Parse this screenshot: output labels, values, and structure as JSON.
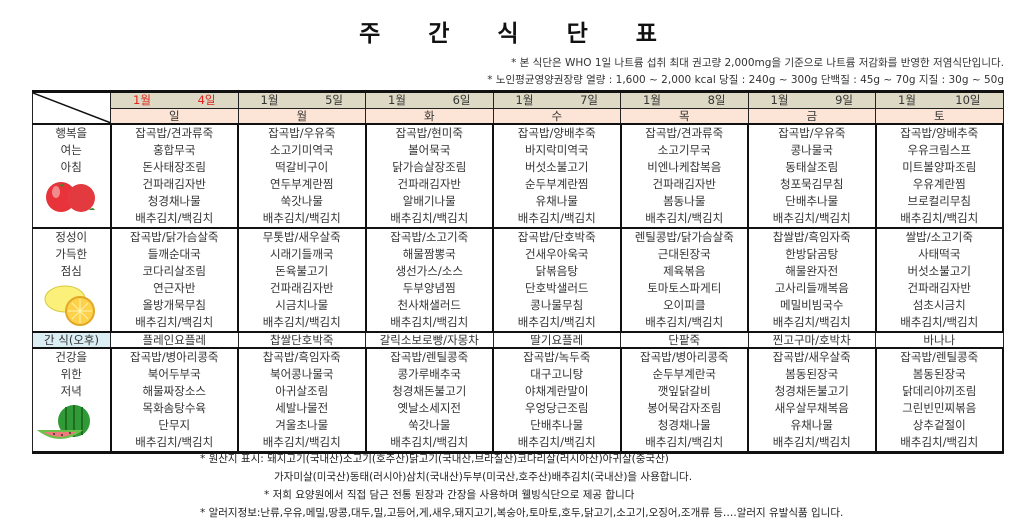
{
  "title": "주 간 식 단 표",
  "notes": [
    "* 본 식단은 WHO 1일 나트륨 섭취 최대 권고량 2,000mg을 기준으로 나트륨 저감화를 반영한 저염식단입니다.",
    "* 노인평균영양권장량  열량 : 1,600 ~ 2,000 kcal  당질 : 240g ~ 300g  단백질 : 45g ~ 70g  지질 : 30g ~ 50g"
  ],
  "colors": {
    "date_bg": "#ddd9c4",
    "day_bg": "#fce4d6",
    "snack_label_bg": "#daeef3",
    "sunday": "#e0241b"
  },
  "days": [
    {
      "month": "1월",
      "date": "4일",
      "weekday": "일",
      "holiday": true
    },
    {
      "month": "1월",
      "date": "5일",
      "weekday": "월"
    },
    {
      "month": "1월",
      "date": "6일",
      "weekday": "화"
    },
    {
      "month": "1월",
      "date": "7일",
      "weekday": "수"
    },
    {
      "month": "1월",
      "date": "8일",
      "weekday": "목"
    },
    {
      "month": "1월",
      "date": "9일",
      "weekday": "금"
    },
    {
      "month": "1월",
      "date": "10일",
      "weekday": "토"
    }
  ],
  "meals": [
    {
      "label": [
        "행복을",
        "여는",
        "아침"
      ],
      "icon": "tomato-icon",
      "menu": [
        [
          "잡곡밥/견과류죽",
          "홍합무국",
          "돈사태장조림",
          "건파래김자반",
          "청경채나물",
          "배추김치/백김치"
        ],
        [
          "잡곡밥/우유죽",
          "소고기미역국",
          "떡갈비구이",
          "연두부계란찜",
          "쑥갓나물",
          "배추김치/백김치"
        ],
        [
          "잡곡밥/현미죽",
          "볼어묵국",
          "닭가슴살장조림",
          "건파래김자반",
          "알배기나물",
          "배추김치/백김치"
        ],
        [
          "잡곡밥/양배추죽",
          "바지락미역국",
          "버섯소불고기",
          "순두부계란찜",
          "유채나물",
          "배추김치/백김치"
        ],
        [
          "잡곡밥/견과류죽",
          "소고기무국",
          "비엔나케찹복음",
          "건파래김자반",
          "봄동나물",
          "배추김치/백김치"
        ],
        [
          "잡곡밥/우유죽",
          "콩나물국",
          "동태살조림",
          "청포묵김무침",
          "단배추나물",
          "배추김치/백김치"
        ],
        [
          "잡곡밥/양배추죽",
          "우유크림스프",
          "미트볼양파조림",
          "우유계란찜",
          "브로컬리무침",
          "배추김치/백김치"
        ]
      ]
    },
    {
      "label": [
        "정성이",
        "가득한",
        "점심"
      ],
      "icon": "lemon-icon",
      "menu": [
        [
          "잡곡밥/닭가슴살죽",
          "들깨순대국",
          "코다리살조림",
          "연근자반",
          "올방개묵무침",
          "배추김치/백김치"
        ],
        [
          "무톳밥/새우살죽",
          "시래기들깨국",
          "돈육불고기",
          "건파래김자반",
          "시금치나물",
          "배추김치/백김치"
        ],
        [
          "잡곡밥/소고기죽",
          "해물짬뽕국",
          "생선가스/소스",
          "두부양념찜",
          "천사채샐러드",
          "배추김치/백김치"
        ],
        [
          "잡곡밥/단호박죽",
          "건새우아욱국",
          "닭볶음탕",
          "단호박샐러드",
          "콩나물무침",
          "배추김치/백김치"
        ],
        [
          "렌틸콩밥/닭가슴살죽",
          "근대된장국",
          "제육볶음",
          "토마토스파게티",
          "오이피클",
          "배추김치/백김치"
        ],
        [
          "찹쌀밥/흑임자죽",
          "한방닭곰탕",
          "해물완자전",
          "고사리들깨복음",
          "메밀비빔국수",
          "배추김치/백김치"
        ],
        [
          "쌀밥/소고기죽",
          "사태떡국",
          "버섯소불고기",
          "건파래김자반",
          "섬초시금치",
          "배추김치/백김치"
        ]
      ]
    }
  ],
  "snack": {
    "label": "간 식(오후)",
    "items": [
      "플레인요플레",
      "찹쌀단호박죽",
      "갈릭소보로빵/자몽차",
      "딸기요플레",
      "단팥죽",
      "찐고구마/호박차",
      "바나나"
    ]
  },
  "dinner": {
    "label": [
      "건강을",
      "위한",
      "저녁"
    ],
    "icon": "watermelon-icon",
    "menu": [
      [
        "잡곡밥/병아리콩죽",
        "북어두부국",
        "해물짜장소스",
        "목화솜탕수육",
        "단무지",
        "배추김치/백김치"
      ],
      [
        "찹곡밥/흑임자죽",
        "북어콩나물국",
        "아귀살조림",
        "세발나물전",
        "겨울초나물",
        "배추김치/백김치"
      ],
      [
        "잡곡밥/렌틸콩죽",
        "콩가루배추국",
        "청경채돈불고기",
        "옛날소세지전",
        "쑥갓나물",
        "배추김치/백김치"
      ],
      [
        "잡곡밥/녹두죽",
        "대구고니탕",
        "야채계란말이",
        "우엉당근조림",
        "단배추나물",
        "배추김치/백김치"
      ],
      [
        "잡곡밥/병아리콩죽",
        "순두부계란국",
        "깻잎닭갈비",
        "봉어묵감자조림",
        "청경채나물",
        "배추김치/백김치"
      ],
      [
        "잡곡밥/새우살죽",
        "봄동된장국",
        "청경채돈불고기",
        "새우살무채복음",
        "유채나물",
        "배추김치/백김치"
      ],
      [
        "잡곡밥/렌틸콩죽",
        "봄동된장국",
        "닭데리야끼조림",
        "그린빈민찌볶음",
        "상추겉절이",
        "배추김치/백김치"
      ]
    ]
  },
  "footer": [
    "* 원산지 표시: 돼지고기(국내산)소고기(호주산)닭고기(국내산,브라질산)코다리살(러시아산)아귀살(중국산)",
    "가자미살(미국산)동태(러시아)삼치(국내산)두부(미국산,호주산)배추김치(국내산)을 사용합니다.",
    "* 저희 요양원에서 직접 담근 전통 된장과 간장을 사용하며 웰빙식단으로 제공 합니다",
    "* 알러지정보:난류,우유,메밀,땅콩,대두,밀,고등어,게,새우,돼지고기,복숭아,토마토,호두,닭고기,소고기,오징어,조개류 등….알러지 유발식품 입니다."
  ]
}
